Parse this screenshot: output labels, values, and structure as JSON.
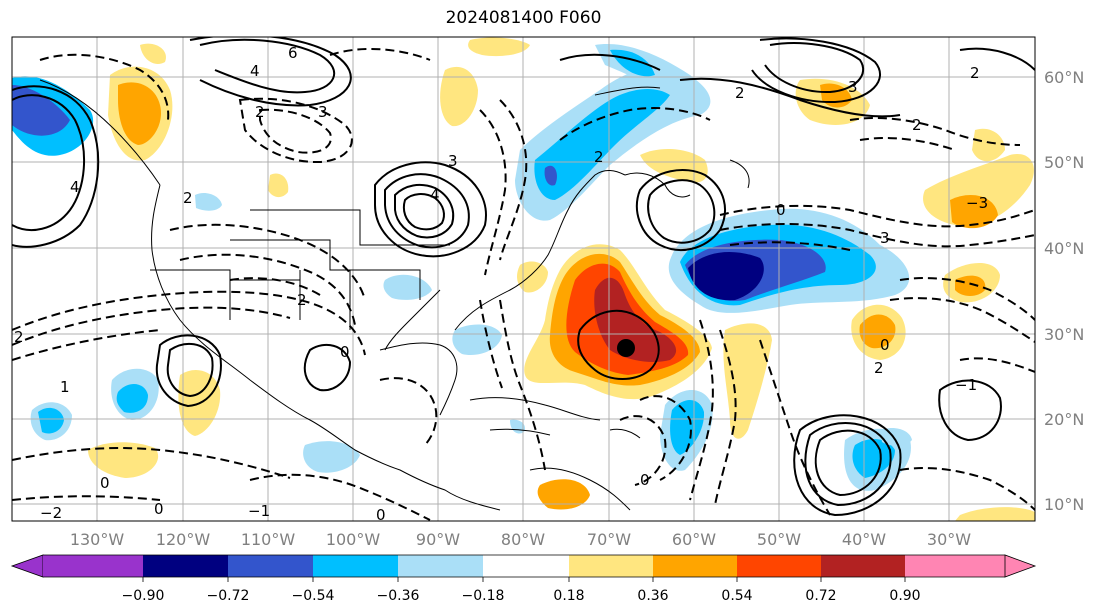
{
  "title": "2024081400 F060",
  "lon_ticks": [
    "130°W",
    "120°W",
    "110°W",
    "100°W",
    "90°W",
    "80°W",
    "70°W",
    "60°W",
    "50°W",
    "40°W",
    "30°W"
  ],
  "lat_ticks": [
    "60°N",
    "50°N",
    "40°N",
    "30°N",
    "20°N",
    "10°N"
  ],
  "colorbar": {
    "labels": [
      "−0.90",
      "−0.72",
      "−0.54",
      "−0.36",
      "−0.18",
      "0.18",
      "0.36",
      "0.54",
      "0.72",
      "0.90"
    ],
    "colors": [
      "#9933cc",
      "#000080",
      "#3355cc",
      "#00bfff",
      "#aadff7",
      "#ffffff",
      "#ffe680",
      "#ffa500",
      "#ff4500",
      "#b22222",
      "#ff85b3"
    ]
  },
  "contour_labels": [
    "6",
    "4",
    "2",
    "3",
    "3",
    "2",
    "4",
    "2",
    "2",
    "1",
    "0",
    "−2",
    "−1",
    "2",
    "4",
    "3",
    "−3",
    "2",
    "2",
    "0",
    "2",
    "0",
    "2",
    "3",
    "−1",
    "0",
    "0",
    "0",
    "0"
  ],
  "map_features": {
    "storm_center": "black dot near 68°W 28°N",
    "anomaly_note": "shaded anomaly field with solid (positive) and dashed (negative) contours"
  }
}
